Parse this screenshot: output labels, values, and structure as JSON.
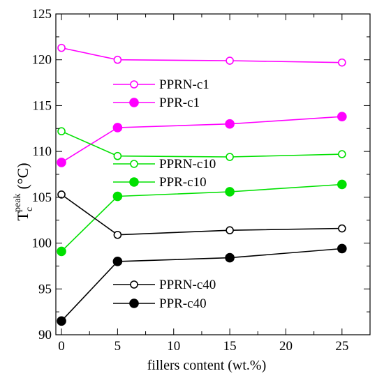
{
  "chart_data": {
    "type": "line",
    "xlabel": "fillers content (wt.%)",
    "ylabel_main": "T",
    "ylabel_sub": "c",
    "ylabel_sup": "peak",
    "ylabel_unit": "(°C)",
    "xlim": [
      -0.5,
      27.5
    ],
    "ylim": [
      90,
      125
    ],
    "xticks": [
      0,
      5,
      10,
      15,
      20,
      25
    ],
    "yticks": [
      90,
      95,
      100,
      105,
      110,
      115,
      120,
      125
    ],
    "grid": false,
    "series": [
      {
        "name": "PPRN-c1",
        "color": "#ff00ff",
        "marker": "open",
        "x": [
          0,
          5,
          15,
          25
        ],
        "y": [
          121.3,
          120.0,
          119.9,
          119.7
        ]
      },
      {
        "name": "PPR-c1",
        "color": "#ff00ff",
        "marker": "filled",
        "x": [
          0,
          5,
          15,
          25
        ],
        "y": [
          108.8,
          112.6,
          113.0,
          113.8
        ]
      },
      {
        "name": "PPRN-c10",
        "color": "#00e000",
        "marker": "open",
        "x": [
          0,
          5,
          15,
          25
        ],
        "y": [
          112.2,
          109.5,
          109.4,
          109.7
        ]
      },
      {
        "name": "PPR-c10",
        "color": "#00e000",
        "marker": "filled",
        "x": [
          0,
          5,
          15,
          25
        ],
        "y": [
          99.1,
          105.1,
          105.6,
          106.4
        ]
      },
      {
        "name": "PPRN-c40",
        "color": "#000000",
        "marker": "open",
        "x": [
          0,
          5,
          15,
          25
        ],
        "y": [
          105.3,
          100.9,
          101.4,
          101.6
        ]
      },
      {
        "name": "PPR-c40",
        "color": "#000000",
        "marker": "filled",
        "x": [
          0,
          5,
          15,
          25
        ],
        "y": [
          91.5,
          98.0,
          98.4,
          99.4
        ]
      }
    ]
  }
}
